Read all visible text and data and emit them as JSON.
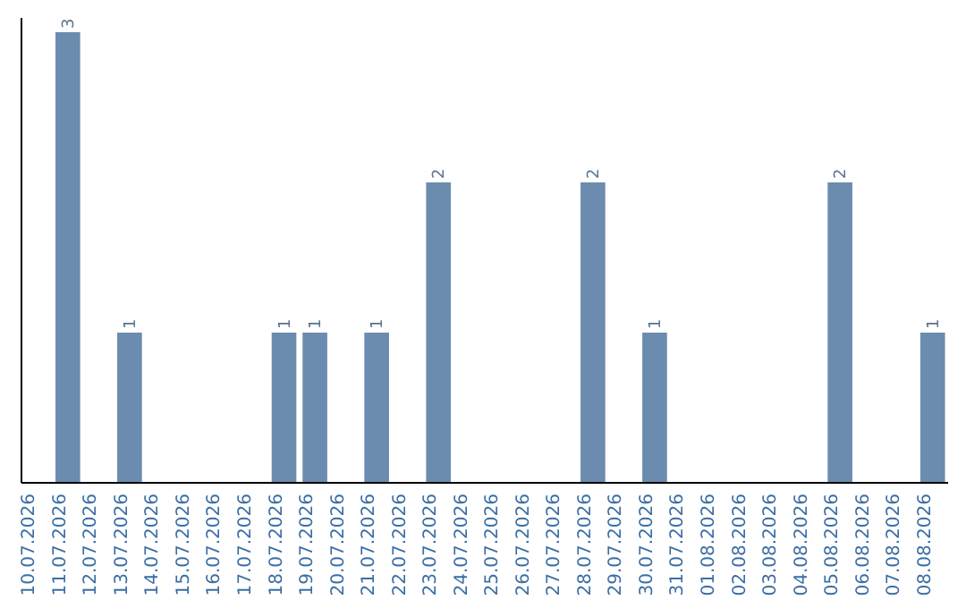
{
  "chart_data": {
    "type": "bar",
    "categories": [
      "10.07.2026",
      "11.07.2026",
      "12.07.2026",
      "13.07.2026",
      "14.07.2026",
      "15.07.2026",
      "16.07.2026",
      "17.07.2026",
      "18.07.2026",
      "19.07.2026",
      "20.07.2026",
      "21.07.2026",
      "22.07.2026",
      "23.07.2026",
      "24.07.2026",
      "25.07.2026",
      "26.07.2026",
      "27.07.2026",
      "28.07.2026",
      "29.07.2026",
      "30.07.2026",
      "31.07.2026",
      "01.08.2026",
      "02.08.2026",
      "03.08.2026",
      "04.08.2026",
      "05.08.2026",
      "06.08.2026",
      "07.08.2026",
      "08.08.2026"
    ],
    "values": [
      0,
      3,
      0,
      1,
      0,
      0,
      0,
      0,
      1,
      1,
      0,
      1,
      0,
      2,
      0,
      0,
      0,
      0,
      2,
      0,
      1,
      0,
      0,
      0,
      0,
      0,
      2,
      0,
      0,
      1
    ],
    "value_labels": [
      null,
      "3",
      null,
      "1",
      null,
      null,
      null,
      null,
      "1",
      "1",
      null,
      "1",
      null,
      "2",
      null,
      null,
      null,
      null,
      "2",
      null,
      "1",
      null,
      null,
      null,
      null,
      null,
      "2",
      null,
      null,
      "1"
    ],
    "color": "#6b8cae",
    "relative": false
  }
}
